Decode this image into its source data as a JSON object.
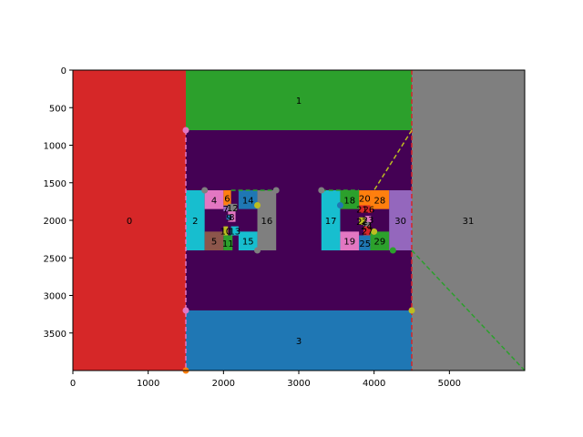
{
  "chart_data": {
    "type": "heatmap",
    "title": "",
    "xlabel": "",
    "ylabel": "",
    "xlim": [
      0,
      6000
    ],
    "ylim": [
      4000,
      0
    ],
    "y_inverted": true,
    "grid": false,
    "xticks": [
      0,
      1000,
      2000,
      3000,
      4000,
      5000
    ],
    "yticks": [
      0,
      500,
      1000,
      1500,
      2000,
      2500,
      3000,
      3500
    ],
    "regions": [
      {
        "id": "0",
        "x": [
          0,
          1500
        ],
        "y": [
          0,
          4000
        ],
        "color": "#d62728"
      },
      {
        "id": "1",
        "x": [
          1500,
          4500
        ],
        "y": [
          0,
          800
        ],
        "color": "#2ca02c"
      },
      {
        "id": "2",
        "x": [
          1500,
          1750
        ],
        "y": [
          1600,
          2400
        ],
        "color": "#17becf"
      },
      {
        "id": "3",
        "x": [
          1500,
          4500
        ],
        "y": [
          3200,
          4000
        ],
        "color": "#1f77b4"
      },
      {
        "id": "4",
        "x": [
          1750,
          2000
        ],
        "y": [
          1600,
          1850
        ],
        "color": "#e377c2"
      },
      {
        "id": "5",
        "x": [
          1750,
          2000
        ],
        "y": [
          2150,
          2400
        ],
        "color": "#8c564b"
      },
      {
        "id": "6",
        "x": [
          2000,
          2100
        ],
        "y": [
          1600,
          1800
        ],
        "color": "#ff7f0e"
      },
      {
        "id": "7",
        "x": [
          2000,
          2060
        ],
        "y": [
          1800,
          1880
        ],
        "color": "#9467bd"
      },
      {
        "id": "8",
        "x": [
          2060,
          2160
        ],
        "y": [
          1880,
          2020
        ],
        "color": "#e377c2"
      },
      {
        "id": "9",
        "x": [
          2040,
          2110
        ],
        "y": [
          1930,
          1990
        ],
        "color": "#1f77b4"
      },
      {
        "id": "10",
        "x": [
          2000,
          2060
        ],
        "y": [
          2080,
          2200
        ],
        "color": "#bcbd22"
      },
      {
        "id": "11",
        "x": [
          2000,
          2120
        ],
        "y": [
          2200,
          2400
        ],
        "color": "#2ca02c"
      },
      {
        "id": "12",
        "x": [
          2060,
          2180
        ],
        "y": [
          1780,
          1880
        ],
        "color": "#7f7f7f"
      },
      {
        "id": "13",
        "x": [
          2100,
          2200
        ],
        "y": [
          2080,
          2200
        ],
        "color": "#17becf"
      },
      {
        "id": "14",
        "x": [
          2200,
          2450
        ],
        "y": [
          1600,
          1850
        ],
        "color": "#1f77b4"
      },
      {
        "id": "15",
        "x": [
          2200,
          2450
        ],
        "y": [
          2150,
          2400
        ],
        "color": "#17becf"
      },
      {
        "id": "16",
        "x": [
          2450,
          2700
        ],
        "y": [
          1600,
          2400
        ],
        "color": "#7f7f7f"
      },
      {
        "id": "17",
        "x": [
          3300,
          3550
        ],
        "y": [
          1600,
          2400
        ],
        "color": "#17becf"
      },
      {
        "id": "18",
        "x": [
          3550,
          3800
        ],
        "y": [
          1600,
          1850
        ],
        "color": "#2ca02c"
      },
      {
        "id": "19",
        "x": [
          3550,
          3800
        ],
        "y": [
          2150,
          2400
        ],
        "color": "#e377c2"
      },
      {
        "id": "20",
        "x": [
          3800,
          3950
        ],
        "y": [
          1600,
          1800
        ],
        "color": "#ff7f0e"
      },
      {
        "id": "21",
        "x": [
          3800,
          3880
        ],
        "y": [
          1800,
          1900
        ],
        "color": "#d62728"
      },
      {
        "id": "22",
        "x": [
          3800,
          3880
        ],
        "y": [
          1960,
          2060
        ],
        "color": "#bcbd22"
      },
      {
        "id": "23",
        "x": [
          3880,
          3960
        ],
        "y": [
          1940,
          2040
        ],
        "color": "#e377c2"
      },
      {
        "id": "24",
        "x": [
          3860,
          3940
        ],
        "y": [
          2020,
          2120
        ],
        "color": "#7f7f7f"
      },
      {
        "id": "25",
        "x": [
          3800,
          3960
        ],
        "y": [
          2200,
          2400
        ],
        "color": "#1f77b4"
      },
      {
        "id": "26",
        "x": [
          3880,
          3980
        ],
        "y": [
          1800,
          1900
        ],
        "color": "#d62728"
      },
      {
        "id": "27",
        "x": [
          3860,
          3960
        ],
        "y": [
          2080,
          2200
        ],
        "color": "#d62728"
      },
      {
        "id": "28",
        "x": [
          3950,
          4200
        ],
        "y": [
          1600,
          1850
        ],
        "color": "#ff7f0e"
      },
      {
        "id": "29",
        "x": [
          3950,
          4200
        ],
        "y": [
          2150,
          2400
        ],
        "color": "#2ca02c"
      },
      {
        "id": "30",
        "x": [
          4200,
          4500
        ],
        "y": [
          1600,
          2400
        ],
        "color": "#9467bd"
      },
      {
        "id": "31",
        "x": [
          4500,
          6000
        ],
        "y": [
          0,
          4000
        ],
        "color": "#7f7f7f"
      }
    ],
    "background_region": {
      "x": [
        1500,
        4500
      ],
      "y": [
        800,
        3200
      ],
      "color": "#440154"
    },
    "overlay_lines": [
      {
        "from": [
          4500,
          0
        ],
        "to": [
          4500,
          4000
        ],
        "color": "#d62728",
        "style": "dashed"
      },
      {
        "from": [
          1500,
          800
        ],
        "to": [
          1500,
          4000
        ],
        "color": "#e377c2",
        "style": "dashed"
      },
      {
        "from": [
          4500,
          800
        ],
        "to": [
          4000,
          1600
        ],
        "color": "#bcbd22",
        "style": "dashed"
      },
      {
        "from": [
          4500,
          2400
        ],
        "to": [
          6000,
          4000
        ],
        "color": "#2ca02c",
        "style": "dashed"
      },
      {
        "from": [
          2100,
          1600
        ],
        "to": [
          2700,
          1600
        ],
        "color": "#2ca02c",
        "style": "dashed"
      },
      {
        "from": [
          3300,
          1600
        ],
        "to": [
          3800,
          1600
        ],
        "color": "#2ca02c",
        "style": "dashed"
      }
    ],
    "markers": [
      {
        "x": 1500,
        "y": 800,
        "color": "#e377c2"
      },
      {
        "x": 1500,
        "y": 3200,
        "color": "#e377c2"
      },
      {
        "x": 1500,
        "y": 4000,
        "color": "#ff7f0e"
      },
      {
        "x": 1750,
        "y": 1600,
        "color": "#7f7f7f"
      },
      {
        "x": 2700,
        "y": 1600,
        "color": "#7f7f7f"
      },
      {
        "x": 2450,
        "y": 2400,
        "color": "#7f7f7f"
      },
      {
        "x": 2450,
        "y": 1800,
        "color": "#bcbd22"
      },
      {
        "x": 3300,
        "y": 1600,
        "color": "#7f7f7f"
      },
      {
        "x": 3550,
        "y": 1800,
        "color": "#1f77b4"
      },
      {
        "x": 4250,
        "y": 2400,
        "color": "#2ca02c"
      },
      {
        "x": 4500,
        "y": 3200,
        "color": "#bcbd22"
      },
      {
        "x": 4000,
        "y": 2150,
        "color": "#bcbd22"
      }
    ]
  }
}
